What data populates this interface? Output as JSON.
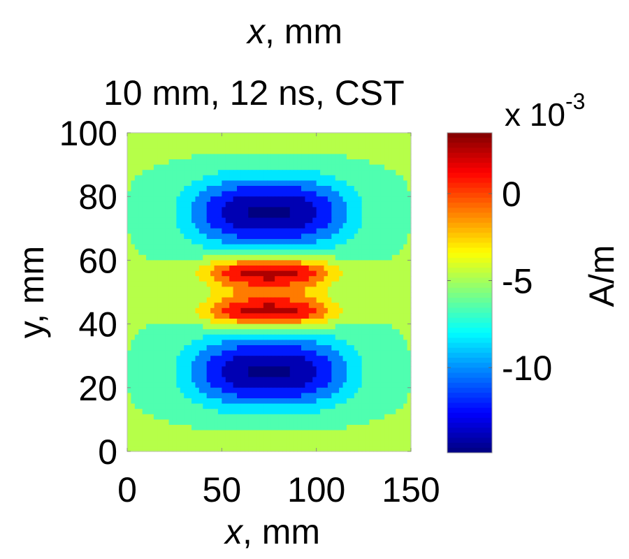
{
  "chart_data": {
    "type": "heatmap",
    "top_label": {
      "var": "x",
      "unit": ", mm"
    },
    "title": "10 mm, 12 ns, CST",
    "xlabel": {
      "var": "x",
      "unit": ", mm"
    },
    "ylabel": "y, mm",
    "xlim": [
      0,
      150
    ],
    "ylim": [
      0,
      100
    ],
    "xticks": [
      "0",
      "50",
      "100",
      "150"
    ],
    "xtick_values": [
      0,
      50,
      100,
      150
    ],
    "yticks": [
      "0",
      "20",
      "40",
      "60",
      "80",
      "100"
    ],
    "ytick_values": [
      0,
      20,
      40,
      60,
      80,
      100
    ],
    "colorbar": {
      "label": "A/m",
      "multiplier": "x 10",
      "exponent": "-3",
      "range": [
        -14.9,
        3.5
      ],
      "ticks": [
        "0",
        "-5",
        "-10"
      ],
      "tick_values": [
        0,
        -5,
        -10
      ],
      "colormap": "jet"
    },
    "levels_step": 1.85,
    "field_model": {
      "background": -5.6,
      "features": [
        {
          "name": "upper negative lobe",
          "x": 75,
          "y": 75,
          "sx": 42,
          "sy": 11,
          "amp": -9.6
        },
        {
          "name": "lower negative lobe",
          "x": 75,
          "y": 25,
          "sx": 42,
          "sy": 11,
          "amp": -9.6
        },
        {
          "name": "upper positive band",
          "x": 75,
          "y": 56.5,
          "sx": 34,
          "sy": 4.2,
          "amp": 8.2
        },
        {
          "name": "lower positive band",
          "x": 75,
          "y": 43.5,
          "sx": 34,
          "sy": 4.2,
          "amp": 8.2
        },
        {
          "name": "center ridge",
          "x": 75,
          "y": 50,
          "sx": 30,
          "sy": 5,
          "amp": 3.2
        }
      ]
    }
  }
}
